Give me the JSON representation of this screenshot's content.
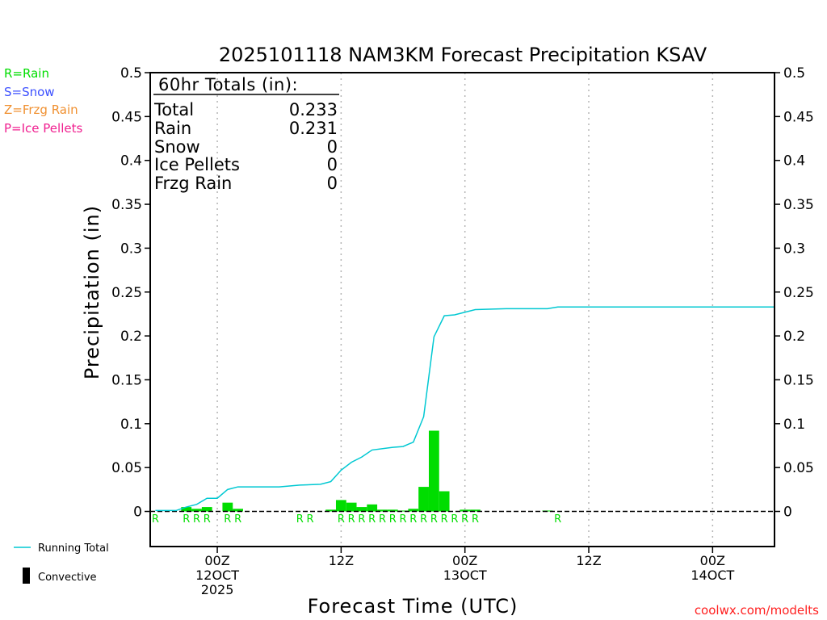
{
  "chart_data": {
    "type": "bar",
    "title": "2025101118 NAM3KM Forecast Precipitation KSAV",
    "xlabel": "Forecast Time (UTC)",
    "ylabel": "Precipitation (in)",
    "ylim": [
      -0.04,
      0.5
    ],
    "yticks": [
      "0",
      "0.05",
      "0.1",
      "0.15",
      "0.2",
      "0.25",
      "0.3",
      "0.35",
      "0.4",
      "0.45",
      "0.5"
    ],
    "ytick_values": [
      0,
      0.05,
      0.1,
      0.15,
      0.2,
      0.25,
      0.3,
      0.35,
      0.4,
      0.45,
      0.5
    ],
    "x_unit": "forecast hour",
    "xlim": [
      -0.5,
      60
    ],
    "xticks": [
      {
        "hour": 6,
        "line1": "00Z",
        "line2": "12OCT",
        "line3": "2025"
      },
      {
        "hour": 18,
        "line1": "12Z",
        "line2": "",
        "line3": ""
      },
      {
        "hour": 30,
        "line1": "00Z",
        "line2": "13OCT",
        "line3": ""
      },
      {
        "hour": 42,
        "line1": "12Z",
        "line2": "",
        "line3": ""
      },
      {
        "hour": 54,
        "line1": "00Z",
        "line2": "14OCT",
        "line3": ""
      }
    ],
    "bar_color": "#00dd00",
    "line_color": "#00c8d2",
    "hourly_precip": [
      {
        "hour": 3,
        "value": 0.005,
        "ptype": "R"
      },
      {
        "hour": 4,
        "value": 0.003,
        "ptype": "R"
      },
      {
        "hour": 5,
        "value": 0.005,
        "ptype": "R"
      },
      {
        "hour": 7,
        "value": 0.01,
        "ptype": "R"
      },
      {
        "hour": 8,
        "value": 0.003,
        "ptype": "R"
      },
      {
        "hour": 17,
        "value": 0.002,
        "ptype": "R"
      },
      {
        "hour": 18,
        "value": 0.013,
        "ptype": "R"
      },
      {
        "hour": 19,
        "value": 0.01,
        "ptype": "R"
      },
      {
        "hour": 20,
        "value": 0.005,
        "ptype": "R"
      },
      {
        "hour": 21,
        "value": 0.008,
        "ptype": "R"
      },
      {
        "hour": 22,
        "value": 0.002,
        "ptype": "R"
      },
      {
        "hour": 23,
        "value": 0.002,
        "ptype": "R"
      },
      {
        "hour": 24,
        "value": 0.001,
        "ptype": "R"
      },
      {
        "hour": 25,
        "value": 0.003,
        "ptype": "R"
      },
      {
        "hour": 26,
        "value": 0.028,
        "ptype": "R"
      },
      {
        "hour": 27,
        "value": 0.092,
        "ptype": "R"
      },
      {
        "hour": 28,
        "value": 0.023,
        "ptype": "R"
      },
      {
        "hour": 30,
        "value": 0.002,
        "ptype": "R"
      },
      {
        "hour": 31,
        "value": 0.002,
        "ptype": "R"
      },
      {
        "hour": 38,
        "value": 0.001,
        "ptype": "R"
      }
    ],
    "ptype_labels": [
      {
        "hour": 0,
        "label": "R"
      },
      {
        "hour": 3,
        "label": "R"
      },
      {
        "hour": 4,
        "label": "R"
      },
      {
        "hour": 5,
        "label": "R"
      },
      {
        "hour": 7,
        "label": "R"
      },
      {
        "hour": 8,
        "label": "R"
      },
      {
        "hour": 14,
        "label": "R"
      },
      {
        "hour": 15,
        "label": "R"
      },
      {
        "hour": 18,
        "label": "R"
      },
      {
        "hour": 19,
        "label": "R"
      },
      {
        "hour": 20,
        "label": "R"
      },
      {
        "hour": 21,
        "label": "R"
      },
      {
        "hour": 22,
        "label": "R"
      },
      {
        "hour": 23,
        "label": "R"
      },
      {
        "hour": 24,
        "label": "R"
      },
      {
        "hour": 25,
        "label": "R"
      },
      {
        "hour": 26,
        "label": "R"
      },
      {
        "hour": 27,
        "label": "R"
      },
      {
        "hour": 28,
        "label": "R"
      },
      {
        "hour": 29,
        "label": "R"
      },
      {
        "hour": 30,
        "label": "R"
      },
      {
        "hour": 31,
        "label": "R"
      },
      {
        "hour": 39,
        "label": "R"
      }
    ],
    "running_total": [
      {
        "hour": 0,
        "value": 0.001
      },
      {
        "hour": 2,
        "value": 0.001
      },
      {
        "hour": 3,
        "value": 0.005
      },
      {
        "hour": 4,
        "value": 0.008
      },
      {
        "hour": 5,
        "value": 0.015
      },
      {
        "hour": 6,
        "value": 0.015
      },
      {
        "hour": 7,
        "value": 0.025
      },
      {
        "hour": 8,
        "value": 0.028
      },
      {
        "hour": 12,
        "value": 0.028
      },
      {
        "hour": 14,
        "value": 0.03
      },
      {
        "hour": 16,
        "value": 0.031
      },
      {
        "hour": 17,
        "value": 0.034
      },
      {
        "hour": 18,
        "value": 0.047
      },
      {
        "hour": 19,
        "value": 0.056
      },
      {
        "hour": 20,
        "value": 0.062
      },
      {
        "hour": 21,
        "value": 0.07
      },
      {
        "hour": 23,
        "value": 0.073
      },
      {
        "hour": 24,
        "value": 0.074
      },
      {
        "hour": 25,
        "value": 0.079
      },
      {
        "hour": 26,
        "value": 0.108
      },
      {
        "hour": 27,
        "value": 0.199
      },
      {
        "hour": 28,
        "value": 0.223
      },
      {
        "hour": 29,
        "value": 0.224
      },
      {
        "hour": 30,
        "value": 0.227
      },
      {
        "hour": 31,
        "value": 0.23
      },
      {
        "hour": 34,
        "value": 0.231
      },
      {
        "hour": 38,
        "value": 0.231
      },
      {
        "hour": 39,
        "value": 0.233
      },
      {
        "hour": 60,
        "value": 0.233
      }
    ]
  },
  "totals_box": {
    "title": "60hr Totals (in):",
    "rows": [
      {
        "label": "Total",
        "value": "0.233"
      },
      {
        "label": "Rain",
        "value": "0.231"
      },
      {
        "label": "Snow",
        "value": "0"
      },
      {
        "label": "Ice Pellets",
        "value": "0"
      },
      {
        "label": "Frzg Rain",
        "value": "0"
      }
    ]
  },
  "ptype_legend": [
    {
      "text": "R=Rain",
      "color": "#00dd00"
    },
    {
      "text": "S=Snow",
      "color": "#3c50ff"
    },
    {
      "text": "Z=Frzg Rain",
      "color": "#f09030"
    },
    {
      "text": "P=Ice Pellets",
      "color": "#f02090"
    }
  ],
  "series_legend": {
    "running_total": "Running Total",
    "convective": "Convective"
  },
  "credit": "coolwx.com/modelts",
  "credit_color": "#ff2020"
}
